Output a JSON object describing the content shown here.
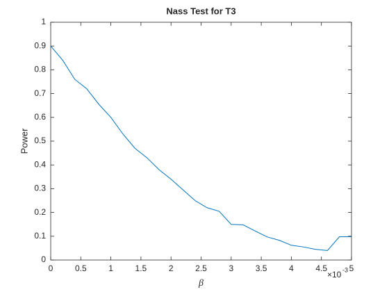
{
  "chart_data": {
    "type": "line",
    "title": "Nass Test for T3",
    "x_label": "β",
    "y_label": "Power",
    "x_multiplier": {
      "base": "×10",
      "exponent": "-3"
    },
    "x": [
      0,
      0.2,
      0.4,
      0.6,
      0.8,
      1.0,
      1.2,
      1.4,
      1.6,
      1.8,
      2.0,
      2.2,
      2.4,
      2.6,
      2.8,
      3.0,
      3.2,
      3.4,
      3.6,
      3.8,
      4.0,
      4.2,
      4.4,
      4.6,
      4.8,
      5.0
    ],
    "series": [
      {
        "color": "#0072bd",
        "values": [
          0.9,
          0.84,
          0.76,
          0.72,
          0.655,
          0.6,
          0.53,
          0.47,
          0.43,
          0.38,
          0.34,
          0.295,
          0.25,
          0.22,
          0.205,
          0.15,
          0.148,
          0.122,
          0.097,
          0.083,
          0.062,
          0.055,
          0.045,
          0.04,
          0.098,
          0.098
        ]
      }
    ],
    "xlim": [
      0,
      5
    ],
    "ylim": [
      0,
      1
    ],
    "xticks": [
      0,
      0.5,
      1,
      1.5,
      2,
      2.5,
      3,
      3.5,
      4,
      4.5,
      5
    ],
    "yticks": [
      0,
      0.1,
      0.2,
      0.3,
      0.4,
      0.5,
      0.6,
      0.7,
      0.8,
      0.9,
      1
    ],
    "grid": false
  }
}
